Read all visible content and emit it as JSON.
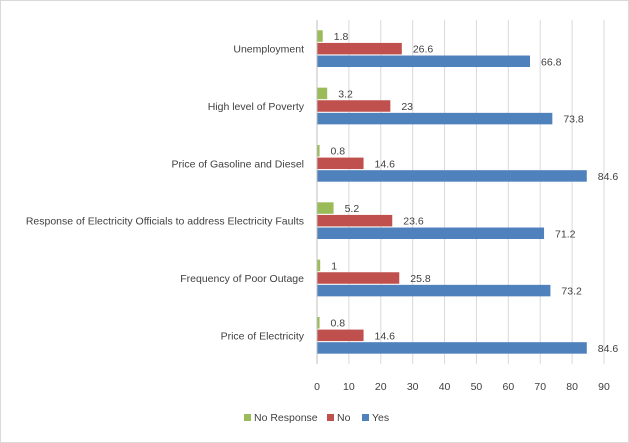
{
  "chart_data": {
    "type": "bar",
    "orientation": "horizontal",
    "categories": [
      "Unemployment",
      "High level of Poverty",
      "Price of Gasoline and Diesel",
      "Response of Electricity Officials to address Electricity Faults",
      "Frequency of Poor Outage",
      "Price of Electricity"
    ],
    "series": [
      {
        "name": "No Response",
        "color": "#9bbb59",
        "values": [
          1.8,
          3.2,
          0.8,
          5.2,
          1,
          0.8
        ]
      },
      {
        "name": "No",
        "color": "#c0504d",
        "values": [
          26.6,
          23,
          14.6,
          23.6,
          25.8,
          14.6
        ]
      },
      {
        "name": "Yes",
        "color": "#4f81bd",
        "values": [
          66.8,
          73.8,
          84.6,
          71.2,
          73.2,
          84.6
        ]
      }
    ],
    "xlim": [
      0,
      90
    ],
    "ticks": [
      "0",
      "10",
      "20",
      "30",
      "40",
      "50",
      "60",
      "70",
      "80",
      "90"
    ],
    "grid": true,
    "legend_position": "bottom",
    "title": "",
    "xlabel": "",
    "ylabel": ""
  }
}
